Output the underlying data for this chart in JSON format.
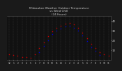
{
  "title": "Milwaukee Weather Outdoor Temperature\nvs Wind Chill\n(24 Hours)",
  "title_fontsize": 3.0,
  "outdoor_temp_color": "#cc0000",
  "wind_chill_color": "#0000cc",
  "background_color": "#1a1a1a",
  "plot_bg_color": "#111111",
  "grid_color": "#555555",
  "text_color": "#cccccc",
  "hours": [
    0,
    1,
    2,
    3,
    4,
    5,
    6,
    7,
    8,
    9,
    10,
    11,
    12,
    13,
    14,
    15,
    16,
    17,
    18,
    19,
    20,
    21,
    22,
    23
  ],
  "outdoor_temp": [
    6,
    5,
    4,
    3,
    3,
    2,
    6,
    12,
    18,
    24,
    29,
    33,
    35,
    37,
    38,
    36,
    33,
    28,
    22,
    16,
    12,
    8,
    6,
    4
  ],
  "wind_chill": [
    null,
    null,
    null,
    null,
    null,
    null,
    null,
    8,
    14,
    20,
    26,
    30,
    32,
    34,
    35,
    33,
    30,
    25,
    19,
    13,
    9,
    5,
    null,
    null
  ],
  "ylim": [
    0,
    45
  ],
  "xlim": [
    -0.5,
    23.5
  ],
  "yticks": [
    10,
    20,
    30,
    40
  ],
  "xtick_labels": [
    "12",
    "1",
    "2",
    "3",
    "4",
    "5",
    "6",
    "7",
    "8",
    "9",
    "10",
    "11",
    "12",
    "1",
    "2",
    "3",
    "4",
    "5",
    "6",
    "7",
    "8",
    "9",
    "10",
    "11"
  ],
  "marker_size": 1.2
}
